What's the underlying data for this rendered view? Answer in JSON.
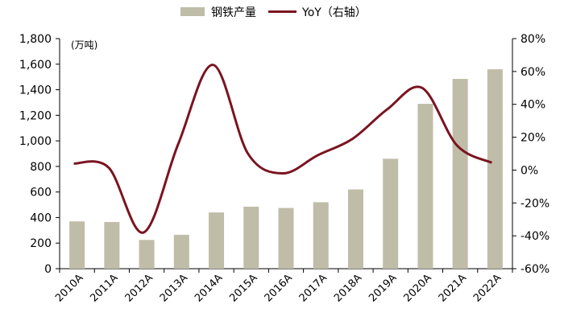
{
  "chart_data": {
    "type": "bar",
    "categories": [
      "2010A",
      "2011A",
      "2012A",
      "2013A",
      "2014A",
      "2015A",
      "2016A",
      "2017A",
      "2018A",
      "2019A",
      "2020A",
      "2021A",
      "2022A"
    ],
    "series": [
      {
        "name": "钢铁产量",
        "type": "bar",
        "axis": "left",
        "color": "#bfbca8",
        "values": [
          370,
          365,
          225,
          265,
          440,
          485,
          475,
          520,
          620,
          860,
          1290,
          1485,
          1560
        ]
      },
      {
        "name": "YoY（右轴）",
        "type": "line",
        "axis": "right",
        "color": "#7a1420",
        "values": [
          4,
          1.5,
          -38,
          16,
          64,
          10,
          -2,
          9,
          19,
          37,
          50,
          15,
          4.5
        ]
      }
    ],
    "left_axis": {
      "unit_label": "(万吨)",
      "ylim": [
        0,
        1800
      ],
      "ticks": [
        "0",
        "200",
        "400",
        "600",
        "800",
        "1,000",
        "1,200",
        "1,400",
        "1,600",
        "1,800"
      ]
    },
    "right_axis": {
      "ylim": [
        -60,
        80
      ],
      "ticks": [
        "-60%",
        "-40%",
        "-20%",
        "0%",
        "20%",
        "40%",
        "60%",
        "80%"
      ]
    },
    "legend_position": "top-center",
    "grid": false
  }
}
